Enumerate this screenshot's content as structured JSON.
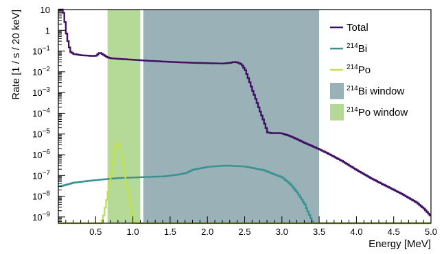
{
  "chart_data": {
    "type": "line",
    "title": "",
    "xlabel": "Energy [MeV]",
    "ylabel": "Rate [1 / s / 20 keV]",
    "xlim": [
      0.0,
      5.0
    ],
    "ylim": [
      5e-10,
      10
    ],
    "yscale": "log",
    "x_ticks": [
      {
        "v": 0.5,
        "label": "0.5"
      },
      {
        "v": 1.0,
        "label": "1.0"
      },
      {
        "v": 1.5,
        "label": "1.5"
      },
      {
        "v": 2.0,
        "label": "2.0"
      },
      {
        "v": 2.5,
        "label": "2.5"
      },
      {
        "v": 3.0,
        "label": "3.0"
      },
      {
        "v": 3.5,
        "label": "3.5"
      },
      {
        "v": 4.0,
        "label": "4.0"
      },
      {
        "v": 4.5,
        "label": "4.5"
      },
      {
        "v": 5.0,
        "label": "5.0"
      }
    ],
    "y_ticks": [
      {
        "v": 10,
        "base": "10",
        "exp": ""
      },
      {
        "v": 1,
        "base": "1",
        "exp": ""
      },
      {
        "v": 0.1,
        "base": "10",
        "exp": "−1"
      },
      {
        "v": 0.01,
        "base": "10",
        "exp": "−2"
      },
      {
        "v": 0.001,
        "base": "10",
        "exp": "−3"
      },
      {
        "v": 0.0001,
        "base": "10",
        "exp": "−4"
      },
      {
        "v": 1e-05,
        "base": "10",
        "exp": "−5"
      },
      {
        "v": 1e-06,
        "base": "10",
        "exp": "−6"
      },
      {
        "v": 1e-07,
        "base": "10",
        "exp": "−7"
      },
      {
        "v": 1e-08,
        "base": "10",
        "exp": "−8"
      },
      {
        "v": 1e-09,
        "base": "10",
        "exp": "−9"
      }
    ],
    "grid": false,
    "legend_position": "top-right",
    "regions": [
      {
        "name": "214Bi window",
        "x0": 1.14,
        "x1": 3.5,
        "color": "#9bb1b8"
      },
      {
        "name": "214Po window",
        "x0": 0.66,
        "x1": 1.1,
        "color": "#b5da97"
      }
    ],
    "series": [
      {
        "name": "Total",
        "color": "#3e0f63",
        "x": [
          0.04,
          0.06,
          0.08,
          0.1,
          0.12,
          0.14,
          0.16,
          0.2,
          0.25,
          0.3,
          0.35,
          0.4,
          0.45,
          0.5,
          0.55,
          0.6,
          0.65,
          0.7,
          0.8,
          0.9,
          1.0,
          1.2,
          1.5,
          1.8,
          2.0,
          2.2,
          2.3,
          2.35,
          2.4,
          2.45,
          2.5,
          2.55,
          2.6,
          2.65,
          2.7,
          2.75,
          2.8,
          2.85,
          2.9,
          2.95,
          3.0,
          3.1,
          3.2,
          3.3,
          3.4,
          3.5,
          3.6,
          3.8,
          4.0,
          4.2,
          4.4,
          4.6,
          4.8,
          4.9,
          5.0
        ],
        "values": [
          10,
          7,
          2.5,
          0.7,
          0.3,
          0.15,
          0.09,
          0.072,
          0.068,
          0.063,
          0.061,
          0.06,
          0.058,
          0.06,
          0.085,
          0.065,
          0.05,
          0.045,
          0.042,
          0.04,
          0.038,
          0.034,
          0.03,
          0.027,
          0.026,
          0.025,
          0.027,
          0.03,
          0.028,
          0.023,
          0.012,
          0.004,
          0.0012,
          0.0004,
          0.00012,
          4e-05,
          1.2e-05,
          1.1e-05,
          1.1e-05,
          1.1e-05,
          1.05e-05,
          8e-06,
          5.5e-06,
          3.7e-06,
          2.6e-06,
          1.8e-06,
          1.2e-06,
          5e-07,
          1.8e-07,
          7e-08,
          3e-08,
          1.3e-08,
          5e-09,
          2.5e-09,
          1e-09
        ]
      },
      {
        "name": "214Bi",
        "color": "#3a9391",
        "x": [
          0.02,
          0.2,
          0.4,
          0.6,
          0.8,
          1.0,
          1.2,
          1.4,
          1.6,
          1.7,
          1.8,
          2.0,
          2.25,
          2.5,
          2.75,
          3.0,
          3.1,
          3.2,
          3.3,
          3.35,
          3.4,
          3.45,
          5.0
        ],
        "values": [
          3e-08,
          4.5e-08,
          5.5e-08,
          6.5e-08,
          7.5e-08,
          8e-08,
          8.5e-08,
          9e-08,
          1.1e-07,
          1.3e-07,
          1.9e-07,
          2.6e-07,
          3e-07,
          2.7e-07,
          1.8e-07,
          8e-08,
          4e-08,
          1.5e-08,
          4e-09,
          1.5e-09,
          6e-10,
          4e-10,
          4e-10
        ]
      },
      {
        "name": "214Po",
        "color": "#c1e04c",
        "x": [
          0.02,
          0.56,
          0.6,
          0.65,
          0.7,
          0.75,
          0.78,
          0.82,
          0.87,
          0.92,
          0.97,
          1.0,
          1.03,
          1.08,
          5.0
        ],
        "values": [
          4e-10,
          4e-10,
          1.2e-09,
          1e-08,
          1.1e-07,
          2.8e-06,
          3.5e-06,
          2.2e-06,
          2.8e-07,
          2.2e-08,
          2e-09,
          6e-10,
          4e-10,
          4e-10,
          4e-10
        ]
      }
    ],
    "legend": [
      {
        "base": "Total",
        "sup": "",
        "kind": "line",
        "color": "#3e0f63"
      },
      {
        "base": "Bi",
        "sup": "214",
        "kind": "line",
        "color": "#3a9391"
      },
      {
        "base": "Po",
        "sup": "214",
        "kind": "line",
        "color": "#c1e04c"
      },
      {
        "base": "Bi window",
        "sup": "214",
        "kind": "box",
        "color": "#9bb1b8"
      },
      {
        "base": "Po window",
        "sup": "214",
        "kind": "box",
        "color": "#b5da97"
      }
    ]
  }
}
